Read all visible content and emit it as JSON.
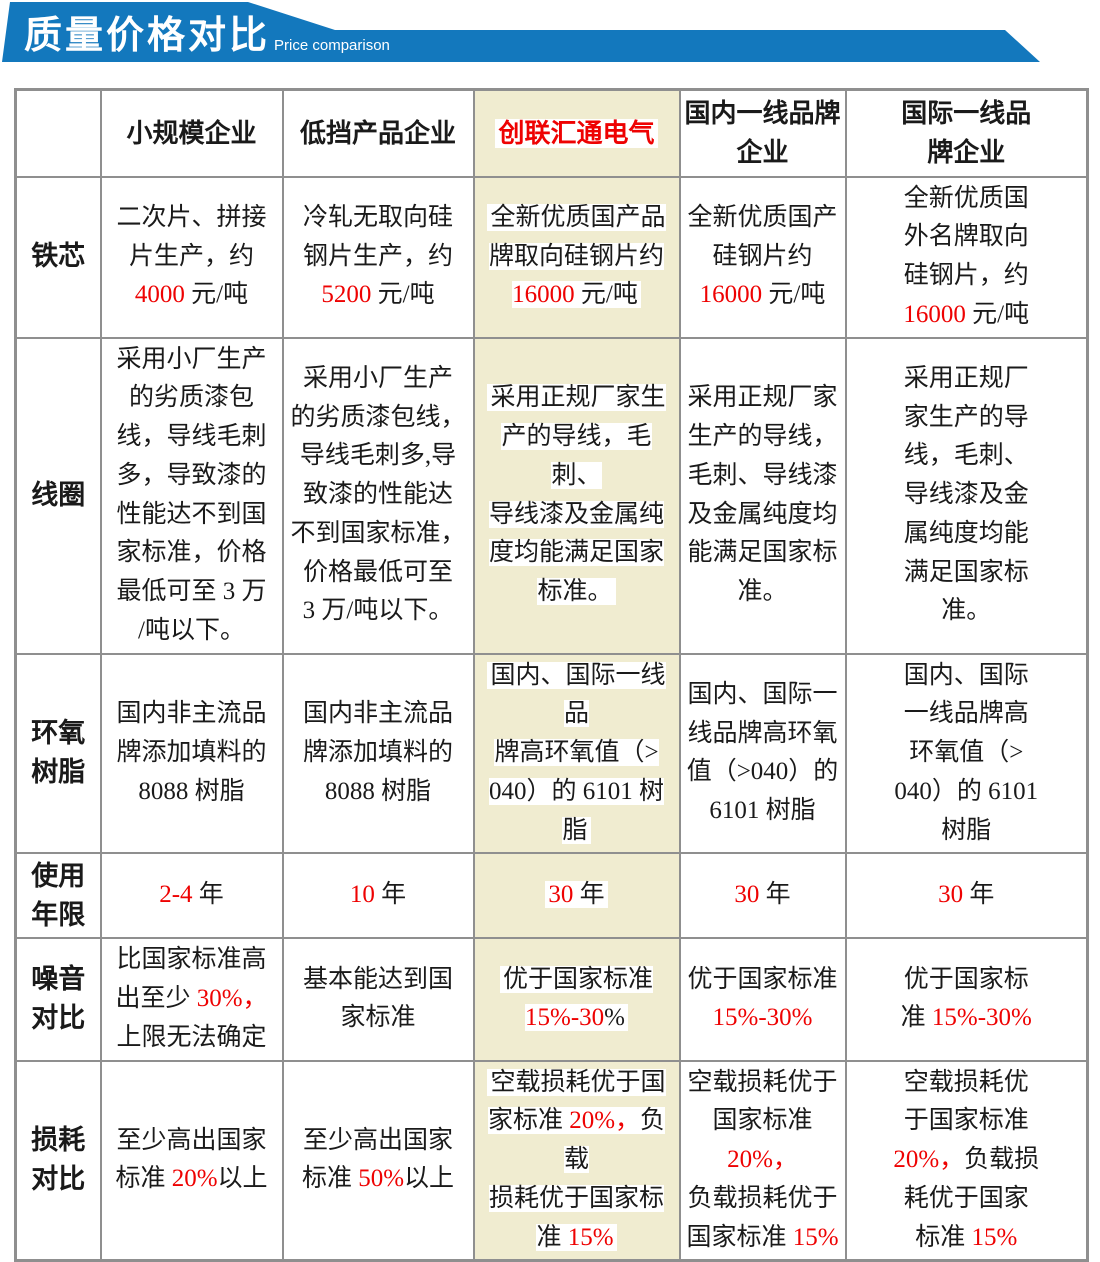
{
  "banner": {
    "title": "质量价格对比",
    "subtitle": "Price comparison"
  },
  "colors": {
    "banner_blue": "#1378bd",
    "accent_red": "#ee0202",
    "featured_column_bg": "#f0ecd0",
    "border_gray": "#8f8f8f"
  },
  "chart_data": {
    "type": "table",
    "title": "质量价格对比",
    "subtitle": "Price comparison",
    "featured_column_index": 2,
    "columns": [
      {
        "hl": false,
        "segs": [
          {
            "t": "小规模企业"
          }
        ]
      },
      {
        "hl": false,
        "segs": [
          {
            "t": "低挡产品企业"
          }
        ]
      },
      {
        "hl": true,
        "segs": [
          {
            "t": "创联汇通电气",
            "red": true
          }
        ]
      },
      {
        "hl": false,
        "segs": [
          {
            "t": "国内一线品牌\n企业"
          }
        ]
      },
      {
        "hl": false,
        "segs": [
          {
            "t": "国际一线品\n牌企业"
          }
        ]
      }
    ],
    "rows": [
      {
        "label": "铁芯",
        "cells": [
          {
            "hl": false,
            "segs": [
              {
                "t": "二次片、拼接\n片生产，约\n"
              },
              {
                "t": "4000",
                "red": true
              },
              {
                "t": " 元/吨"
              }
            ]
          },
          {
            "hl": false,
            "segs": [
              {
                "t": "冷轧无取向硅\n钢片生产，约\n"
              },
              {
                "t": "5200",
                "red": true
              },
              {
                "t": " 元/吨"
              }
            ]
          },
          {
            "hl": true,
            "segs": [
              {
                "t": "全新优质国产品\n牌取向硅钢片约\n"
              },
              {
                "t": "16000",
                "red": true
              },
              {
                "t": " 元/吨"
              }
            ]
          },
          {
            "hl": false,
            "segs": [
              {
                "t": "全新优质国产\n硅钢片约\n"
              },
              {
                "t": "16000",
                "red": true
              },
              {
                "t": " 元/吨"
              }
            ]
          },
          {
            "hl": false,
            "segs": [
              {
                "t": "全新优质国\n外名牌取向\n硅钢片，约\n"
              },
              {
                "t": "16000",
                "red": true
              },
              {
                "t": " 元/吨"
              }
            ]
          }
        ]
      },
      {
        "label": "线圈",
        "cells": [
          {
            "hl": false,
            "segs": [
              {
                "t": "采用小厂生产\n的劣质漆包\n线，导线毛刺\n多，导致漆的\n性能达不到国\n家标准，价格\n最低可至 3 万\n/吨以下。"
              }
            ]
          },
          {
            "hl": false,
            "segs": [
              {
                "t": "采用小厂生产\n的劣质漆包线，\n导线毛刺多,导\n致漆的性能达\n不到国家标准，\n价格最低可至\n3 万/吨以下。"
              }
            ]
          },
          {
            "hl": true,
            "segs": [
              {
                "t": "采用正规厂家生\n产的导线，毛刺、\n导线漆及金属纯\n度均能满足国家\n标准。"
              }
            ]
          },
          {
            "hl": false,
            "segs": [
              {
                "t": "采用正规厂家\n生产的导线，\n毛刺、导线漆\n及金属纯度均\n能满足国家标\n准。"
              }
            ]
          },
          {
            "hl": false,
            "segs": [
              {
                "t": "采用正规厂\n家生产的导\n线，毛刺、\n导线漆及金\n属纯度均能\n满足国家标\n准。"
              }
            ]
          }
        ]
      },
      {
        "label": "环氧\n树脂",
        "cells": [
          {
            "hl": false,
            "segs": [
              {
                "t": "国内非主流品\n牌添加填料的\n8088 树脂"
              }
            ]
          },
          {
            "hl": false,
            "segs": [
              {
                "t": "国内非主流品\n牌添加填料的\n8088 树脂"
              }
            ]
          },
          {
            "hl": true,
            "segs": [
              {
                "t": "国内、国际一线品\n牌高环氧值（>\n040）的 6101 树脂"
              }
            ]
          },
          {
            "hl": false,
            "segs": [
              {
                "t": "国内、国际一\n线品牌高环氧\n值（>040）的\n6101 树脂"
              }
            ]
          },
          {
            "hl": false,
            "segs": [
              {
                "t": "国内、国际\n一线品牌高\n环氧值（>\n040）的 6101\n树脂"
              }
            ]
          }
        ]
      },
      {
        "label": "使用\n年限",
        "cells": [
          {
            "hl": false,
            "segs": [
              {
                "t": "2-4",
                "red": true
              },
              {
                "t": " 年"
              }
            ]
          },
          {
            "hl": false,
            "segs": [
              {
                "t": "10",
                "red": true
              },
              {
                "t": " 年"
              }
            ]
          },
          {
            "hl": true,
            "segs": [
              {
                "t": "30",
                "red": true
              },
              {
                "t": " 年"
              }
            ]
          },
          {
            "hl": false,
            "segs": [
              {
                "t": "30",
                "red": true
              },
              {
                "t": " 年"
              }
            ]
          },
          {
            "hl": false,
            "segs": [
              {
                "t": "30",
                "red": true
              },
              {
                "t": " 年"
              }
            ]
          }
        ]
      },
      {
        "label": "噪音\n对比",
        "cells": [
          {
            "hl": false,
            "segs": [
              {
                "t": "比国家标准高\n出至少 "
              },
              {
                "t": "30%，",
                "red": true
              },
              {
                "t": "\n上限无法确定"
              }
            ]
          },
          {
            "hl": false,
            "segs": [
              {
                "t": "基本能达到国\n家标准"
              }
            ]
          },
          {
            "hl": true,
            "segs": [
              {
                "t": "优于国家标准\n"
              },
              {
                "t": "15%-30",
                "red": true
              },
              {
                "t": "%"
              }
            ]
          },
          {
            "hl": false,
            "segs": [
              {
                "t": "优于国家标准\n"
              },
              {
                "t": "15%-30%",
                "red": true
              }
            ]
          },
          {
            "hl": false,
            "segs": [
              {
                "t": "优于国家标\n准 "
              },
              {
                "t": "15%-30%",
                "red": true
              }
            ]
          }
        ]
      },
      {
        "label": "损耗\n对比",
        "cells": [
          {
            "hl": false,
            "segs": [
              {
                "t": "至少高出国家\n标准 "
              },
              {
                "t": "20%",
                "red": true
              },
              {
                "t": "以上"
              }
            ]
          },
          {
            "hl": false,
            "segs": [
              {
                "t": "至少高出国家\n标准 "
              },
              {
                "t": "50%",
                "red": true
              },
              {
                "t": "以上"
              }
            ]
          },
          {
            "hl": true,
            "segs": [
              {
                "t": "空载损耗优于国\n家标准 "
              },
              {
                "t": "20%，",
                "red": true
              },
              {
                "t": "负载\n损耗优于国家标\n准 "
              },
              {
                "t": "15%",
                "red": true
              }
            ]
          },
          {
            "hl": false,
            "segs": [
              {
                "t": "空载损耗优于\n国家标准 "
              },
              {
                "t": "20%，",
                "red": true
              },
              {
                "t": "\n负载损耗优于\n国家标准 "
              },
              {
                "t": "15%",
                "red": true
              }
            ]
          },
          {
            "hl": false,
            "segs": [
              {
                "t": "空载损耗优\n于国家标准\n"
              },
              {
                "t": "20%，",
                "red": true
              },
              {
                "t": "负载损\n耗优于国家\n标准 "
              },
              {
                "t": "15%",
                "red": true
              }
            ]
          }
        ]
      }
    ]
  }
}
